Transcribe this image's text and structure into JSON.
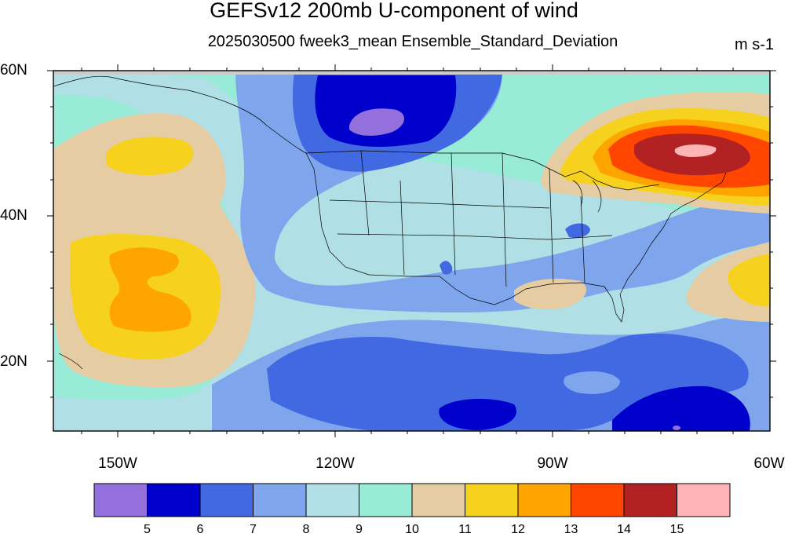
{
  "title": "GEFSv12 200mb U-component of wind",
  "subtitle": "2025030500 fweek3_mean Ensemble_Standard_Deviation",
  "units": "m s-1",
  "lat_ticks": [
    "60N",
    "40N",
    "20N"
  ],
  "lon_ticks": [
    "150W",
    "120W",
    "90W",
    "60W"
  ],
  "colorbar": {
    "colors": [
      "#9370db",
      "#0000cd",
      "#4169e1",
      "#7fa5ec",
      "#b0e0e6",
      "#98ebd6",
      "#e6cca3",
      "#f6d21f",
      "#ffa500",
      "#ff4500",
      "#b22222",
      "#ffb5b5"
    ],
    "labels": [
      "5",
      "6",
      "7",
      "8",
      "9",
      "10",
      "11",
      "12",
      "13",
      "14",
      "15"
    ]
  },
  "map_extent": {
    "lon_min": -159,
    "lon_max": -60,
    "lat_min": 10,
    "lat_max": 60
  }
}
